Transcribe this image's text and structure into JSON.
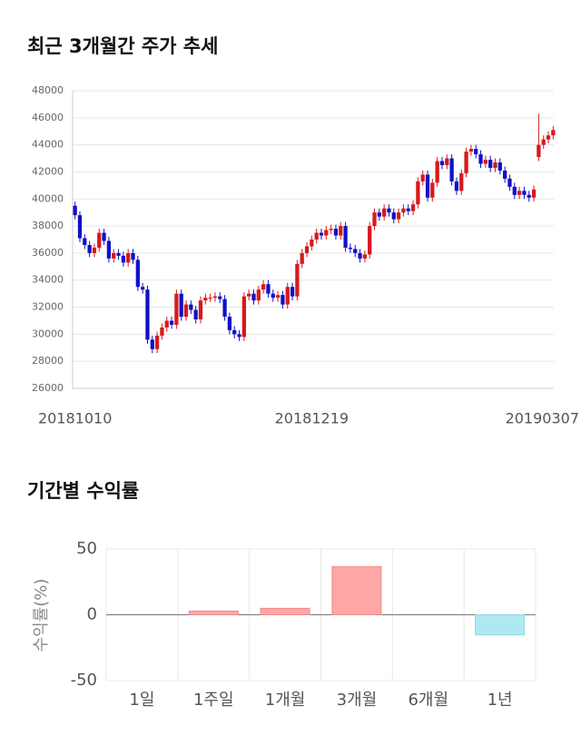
{
  "chart_data": [
    {
      "type": "candlestick",
      "title": "최근 3개월간 주가 추세",
      "categories": [
        "20181010",
        null,
        null,
        null,
        null,
        null,
        null,
        null,
        null,
        null,
        null,
        null,
        null,
        null,
        null,
        null,
        null,
        null,
        null,
        null,
        null,
        null,
        null,
        null,
        null,
        null,
        null,
        null,
        null,
        null,
        null,
        null,
        null,
        null,
        null,
        null,
        null,
        null,
        null,
        null,
        null,
        null,
        null,
        null,
        null,
        null,
        null,
        null,
        null,
        "20181219",
        null,
        null,
        null,
        null,
        null,
        null,
        null,
        null,
        null,
        null,
        null,
        null,
        null,
        null,
        null,
        null,
        null,
        null,
        null,
        null,
        null,
        null,
        null,
        null,
        null,
        null,
        null,
        null,
        null,
        null,
        null,
        null,
        null,
        null,
        null,
        null,
        null,
        null,
        null,
        null,
        null,
        null,
        null,
        null,
        null,
        null,
        null,
        null,
        null,
        "20190307"
      ],
      "open": [
        39500,
        38800,
        37100,
        36600,
        36000,
        36400,
        37500,
        36900,
        35600,
        36000,
        35800,
        35300,
        36000,
        35500,
        33500,
        33300,
        29600,
        28900,
        29900,
        30500,
        31000,
        30700,
        33000,
        31300,
        32200,
        31800,
        31100,
        32500,
        32700,
        32700,
        32800,
        32600,
        31300,
        30300,
        30000,
        29800,
        32800,
        33000,
        32500,
        33300,
        33700,
        33000,
        32700,
        32900,
        32200,
        33500,
        32800,
        35200,
        36000,
        36500,
        37000,
        37500,
        37300,
        37700,
        37800,
        37300,
        38000,
        36400,
        36300,
        36000,
        35600,
        35900,
        38000,
        39000,
        38700,
        39300,
        39000,
        38500,
        39000,
        39300,
        39100,
        39600,
        41300,
        41800,
        40100,
        41200,
        42800,
        42500,
        43000,
        41300,
        40600,
        41900,
        43500,
        43700,
        43300,
        42600,
        42900,
        42300,
        42700,
        42100,
        41500,
        40900,
        40300,
        40600,
        40300,
        40100,
        43100,
        44000,
        44400,
        44700
      ],
      "high": [
        39800,
        39100,
        37400,
        36900,
        36700,
        37800,
        37800,
        37200,
        36300,
        36300,
        36100,
        36300,
        36300,
        35800,
        33800,
        33600,
        29900,
        30200,
        30800,
        31300,
        31300,
        33300,
        33300,
        32500,
        32500,
        32100,
        32800,
        33000,
        33000,
        33100,
        33100,
        32900,
        31600,
        30600,
        30300,
        33100,
        33300,
        33300,
        33600,
        34000,
        34000,
        33300,
        33200,
        33200,
        33800,
        33800,
        35500,
        36300,
        36800,
        37300,
        37800,
        37800,
        38000,
        38100,
        38100,
        38300,
        38300,
        36700,
        36600,
        36300,
        36200,
        38300,
        39300,
        39300,
        39600,
        39600,
        39300,
        39300,
        39600,
        39600,
        39900,
        41600,
        42100,
        42100,
        41500,
        43100,
        43100,
        43300,
        43300,
        41600,
        42200,
        43800,
        44000,
        44000,
        43600,
        43200,
        43200,
        43000,
        43000,
        42400,
        41800,
        41200,
        40900,
        40900,
        40600,
        41000,
        46300,
        44700,
        45000,
        45400
      ],
      "low": [
        38500,
        36800,
        36300,
        35700,
        35700,
        36100,
        36600,
        35300,
        35300,
        35500,
        35000,
        35000,
        35200,
        33200,
        33000,
        29300,
        28600,
        28600,
        29600,
        30200,
        30400,
        30400,
        31000,
        31000,
        31500,
        30800,
        30800,
        32200,
        32400,
        32400,
        32300,
        31000,
        30000,
        29700,
        29500,
        29500,
        32500,
        32200,
        32200,
        33000,
        32700,
        32400,
        32400,
        31900,
        31900,
        32500,
        32500,
        34900,
        35700,
        36200,
        36700,
        37000,
        37000,
        37400,
        37000,
        37000,
        36100,
        36000,
        35700,
        35300,
        35300,
        35600,
        37700,
        38400,
        38400,
        38700,
        38200,
        38200,
        38700,
        38800,
        38800,
        39300,
        41000,
        39800,
        39800,
        40900,
        42200,
        42200,
        41000,
        40300,
        40300,
        41600,
        43200,
        43000,
        42300,
        42300,
        42000,
        42000,
        41800,
        41200,
        40600,
        40000,
        40000,
        40000,
        39800,
        39800,
        42800,
        43700,
        44100,
        44400
      ],
      "close": [
        38800,
        37100,
        36600,
        36000,
        36400,
        37500,
        36900,
        35600,
        36000,
        35800,
        35300,
        36000,
        35500,
        33500,
        33300,
        29600,
        28900,
        29900,
        30500,
        31000,
        30700,
        33000,
        31300,
        32200,
        31800,
        31100,
        32500,
        32700,
        32700,
        32800,
        32600,
        31300,
        30300,
        30000,
        29800,
        32800,
        33000,
        32500,
        33300,
        33700,
        33000,
        32700,
        32900,
        32200,
        33500,
        32800,
        35200,
        36000,
        36500,
        37000,
        37500,
        37300,
        37700,
        37800,
        37300,
        38000,
        36400,
        36300,
        36000,
        35600,
        35900,
        38000,
        39000,
        38700,
        39300,
        39000,
        38500,
        39000,
        39300,
        39100,
        39600,
        41300,
        41800,
        40100,
        41200,
        42800,
        42500,
        43000,
        41300,
        40600,
        41900,
        43500,
        43700,
        43300,
        42600,
        42900,
        42300,
        42700,
        42100,
        41500,
        40900,
        40300,
        40600,
        40300,
        40100,
        40700,
        44000,
        44400,
        44700,
        45100
      ],
      "up_color": "#d7191c",
      "down_color": "#1010c8",
      "ylim": [
        26000,
        48000
      ],
      "yticks": [
        26000,
        28000,
        30000,
        32000,
        34000,
        36000,
        38000,
        40000,
        42000,
        44000,
        46000,
        48000
      ],
      "grid": true
    },
    {
      "type": "bar",
      "title": "기간별 수익률",
      "ylabel": "수익률(%)",
      "categories": [
        "1일",
        "1주일",
        "1개월",
        "3개월",
        "6개월",
        "1년"
      ],
      "values": [
        0,
        2.8,
        4.9,
        36.5,
        0,
        -15.3
      ],
      "positive_color": "#ffa6a6",
      "negative_color": "#aee9f2",
      "ylim": [
        -50,
        50
      ],
      "yticks": [
        -50,
        0,
        50
      ],
      "grid": true
    }
  ]
}
